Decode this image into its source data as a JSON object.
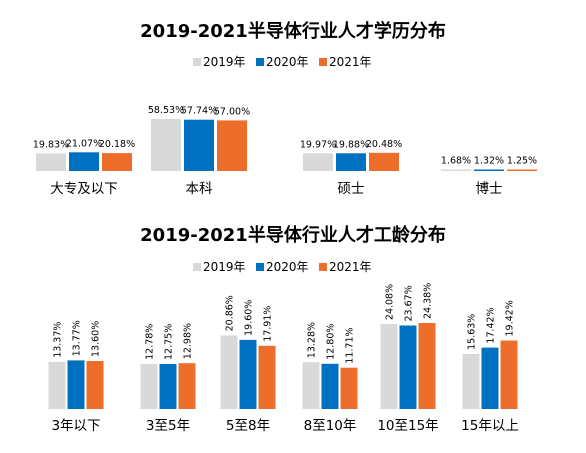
{
  "colors": {
    "s2019": "#d9d9d9",
    "s2020": "#0070c0",
    "s2021": "#ed6d2b",
    "text": "#000000"
  },
  "chart_data": [
    {
      "type": "bar",
      "title": "2019-2021半导体行业人才学历分布",
      "categories": [
        "大专及以下",
        "本科",
        "硕士",
        "博士"
      ],
      "series": [
        {
          "name": "2019年",
          "values": [
            19.83,
            58.53,
            19.97,
            1.68
          ],
          "labels": [
            "19.83%",
            "58.53%",
            "19.97%",
            "1.68%"
          ]
        },
        {
          "name": "2020年",
          "values": [
            21.07,
            57.74,
            19.88,
            1.32
          ],
          "labels": [
            "21.07%",
            "57.74%",
            "19.88%",
            "1.32%"
          ]
        },
        {
          "name": "2021年",
          "values": [
            20.18,
            57.0,
            20.48,
            1.25
          ],
          "labels": [
            "20.18%",
            "57.00%",
            "20.48%",
            "1.25%"
          ]
        }
      ],
      "legend": "top-center",
      "grid": false,
      "ylim": [
        0,
        60
      ]
    },
    {
      "type": "bar",
      "title": "2019-2021半导体行业人才工龄分布",
      "categories": [
        "3年以下",
        "3至5年",
        "5至8年",
        "8至10年",
        "10至15年",
        "15年以上"
      ],
      "series": [
        {
          "name": "2019年",
          "values": [
            13.37,
            12.78,
            20.86,
            13.28,
            24.08,
            15.63
          ],
          "labels": [
            "13.37%",
            "12.78%",
            "20.86%",
            "13.28%",
            "24.08%",
            "15.63%"
          ]
        },
        {
          "name": "2020年",
          "values": [
            13.77,
            12.75,
            19.6,
            12.8,
            23.67,
            17.42
          ],
          "labels": [
            "13.77%",
            "12.75%",
            "19.60%",
            "12.80%",
            "23.67%",
            "17.42%"
          ]
        },
        {
          "name": "2021年",
          "values": [
            13.6,
            12.98,
            17.91,
            11.71,
            24.38,
            19.42
          ],
          "labels": [
            "13.60%",
            "12.98%",
            "17.91%",
            "11.71%",
            "24.38%",
            "19.42%"
          ]
        }
      ],
      "legend": "top-center",
      "grid": false,
      "ylim": [
        0,
        26
      ]
    }
  ]
}
